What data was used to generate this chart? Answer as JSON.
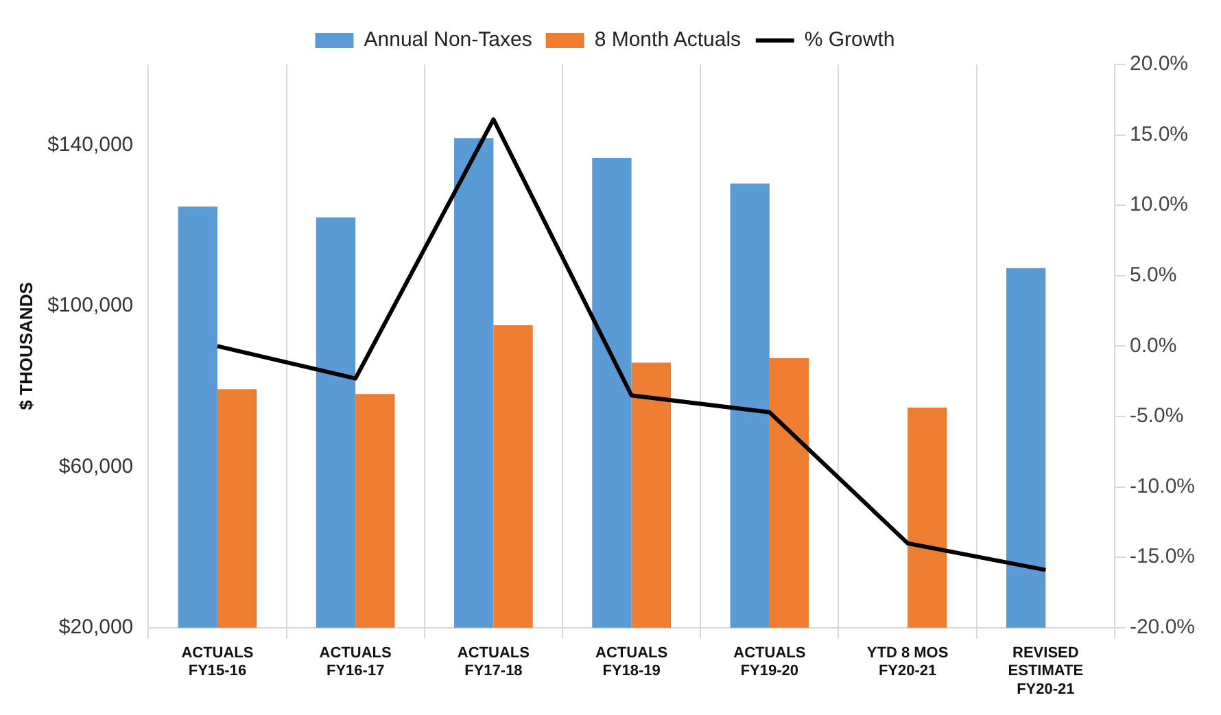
{
  "chart_data": {
    "type": "bar",
    "ylabel": "$ THOUSANDS",
    "categories": [
      "ACTUALS\nFY15-16",
      "ACTUALS\nFY16-17",
      "ACTUALS\nFY17-18",
      "ACTUALS\nFY18-19",
      "ACTUALS\nFY19-20",
      "YTD 8 MOS\nFY20-21",
      "REVISED\nESTIMATE\nFY20-21"
    ],
    "series": [
      {
        "name": "Annual Non-Taxes",
        "color": "#5b9bd5",
        "values": [
          124700,
          122000,
          141700,
          136800,
          130400,
          null,
          109400
        ]
      },
      {
        "name": "8 Month Actuals",
        "color": "#ed7d31",
        "values": [
          79300,
          78100,
          95200,
          85900,
          87000,
          74700,
          null
        ]
      },
      {
        "name": "% Growth",
        "type": "line",
        "axis": "y2",
        "color": "#000000",
        "marker": "none",
        "values": [
          0.0,
          -2.3,
          16.1,
          -3.5,
          -4.7,
          -14.0,
          -15.9
        ]
      }
    ],
    "ylim": [
      20000,
      160000
    ],
    "yticks": [
      {
        "value": 20000,
        "label": "$20,000"
      },
      {
        "value": 60000,
        "label": "$60,000"
      },
      {
        "value": 100000,
        "label": "$100,000"
      },
      {
        "value": 140000,
        "label": "$140,000"
      }
    ],
    "y2lim": [
      -20,
      20
    ],
    "y2ticks": [
      {
        "value": -20,
        "label": "-20.0%"
      },
      {
        "value": -15,
        "label": "-15.0%"
      },
      {
        "value": -10,
        "label": "-10.0%"
      },
      {
        "value": -5,
        "label": "-5.0%"
      },
      {
        "value": 0,
        "label": "0.0%"
      },
      {
        "value": 5,
        "label": "5.0%"
      },
      {
        "value": 10,
        "label": "10.0%"
      },
      {
        "value": 15,
        "label": "15.0%"
      },
      {
        "value": 20,
        "label": "20.0%"
      }
    ],
    "grid": "x",
    "legend": "top"
  }
}
